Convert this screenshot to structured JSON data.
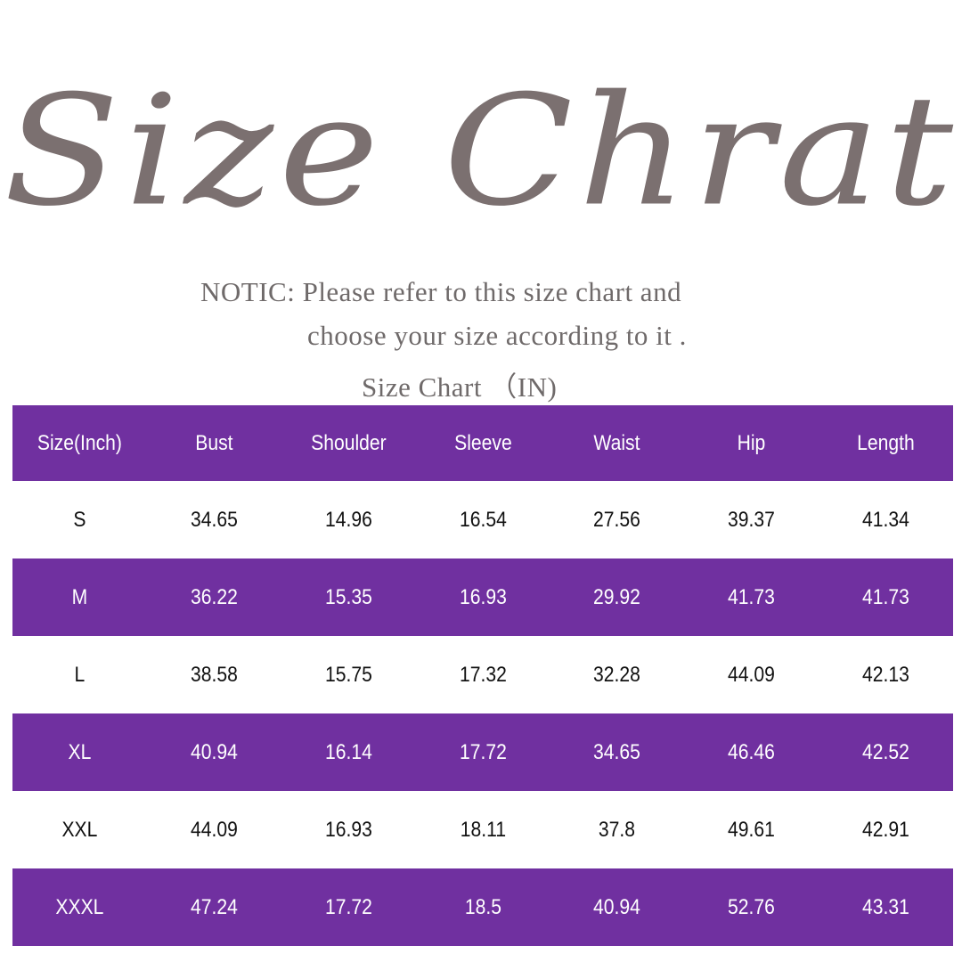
{
  "title": "Size Chrat",
  "notice_line1": "NOTIC: Please refer to this size chart and",
  "notice_line2": "choose your size according to it .",
  "subtitle": "Size Chart （IN)",
  "colors": {
    "accent": "#7030a0",
    "title": "#7b7070"
  },
  "chart_data": {
    "type": "table",
    "columns": [
      "Size(Inch)",
      "Bust",
      "Shoulder",
      "Sleeve",
      "Waist",
      "Hip",
      "Length"
    ],
    "rows": [
      [
        "S",
        "34.65",
        "14.96",
        "16.54",
        "27.56",
        "39.37",
        "41.34"
      ],
      [
        "M",
        "36.22",
        "15.35",
        "16.93",
        "29.92",
        "41.73",
        "41.73"
      ],
      [
        "L",
        "38.58",
        "15.75",
        "17.32",
        "32.28",
        "44.09",
        "42.13"
      ],
      [
        "XL",
        "40.94",
        "16.14",
        "17.72",
        "34.65",
        "46.46",
        "42.52"
      ],
      [
        "XXL",
        "44.09",
        "16.93",
        "18.11",
        "37.8",
        "49.61",
        "42.91"
      ],
      [
        "XXXL",
        "47.24",
        "17.72",
        "18.5",
        "40.94",
        "52.76",
        "43.31"
      ]
    ]
  }
}
